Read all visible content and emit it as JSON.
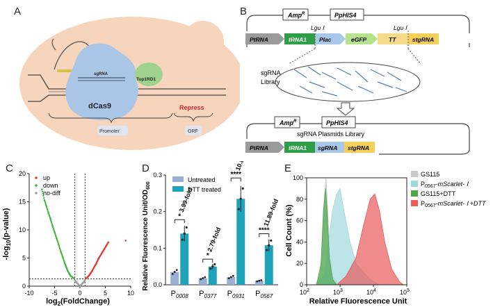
{
  "figure": {
    "panel_labels": [
      "A",
      "B",
      "C",
      "D",
      "E"
    ]
  },
  "panel_a": {
    "sgRNA_label": "sgRNA",
    "dcas9_label": "dCas9",
    "tup_label": "Tup1RD1",
    "repress_label": "Repress",
    "promoter_label": "Promoter",
    "orf_label": "ORF",
    "colors": {
      "cell": "#f7d4bc",
      "dcas9": "#a9c6e6",
      "tup": "#9fd28e",
      "repress": "#cc2a2a"
    }
  },
  "panel_b": {
    "top": {
      "amp": "Amp",
      "amp_sup": "R",
      "his": "PpHIS4",
      "lgu1": "Lgu Ⅰ",
      "lgu2": "Lgu Ⅰ",
      "parts": [
        "PtRNA",
        "tRNA1",
        "Plac",
        "eGFP",
        "TT",
        "stgRNA"
      ]
    },
    "library_label": "sgRNA\nLibrary",
    "bottom": {
      "amp": "Amp",
      "amp_sup": "R",
      "his": "PpHIS4",
      "title": "sgRNA Plasmids Library",
      "parts": [
        "PtRNA",
        "tRNA1",
        "sgRNA",
        "stgRNA"
      ]
    },
    "colors": {
      "ptrna": "#9b9b9b",
      "trna1": "#2e9e48",
      "plac": "#a9c7e8",
      "egfp": "#b7e38f",
      "tt": "#f4d986",
      "stgrna": "#f4cf5a",
      "sgrna": "#a9c7e8"
    }
  },
  "chart_data": [
    {
      "panel": "C",
      "type": "scatter",
      "xlabel": "log2(FoldChange)",
      "ylabel": "-log10(p-value)",
      "xlim": [
        -10,
        10
      ],
      "ylim": [
        0,
        20
      ],
      "xticks": [
        "-10",
        "-5",
        "0",
        "5",
        "10"
      ],
      "yticks": [
        "0",
        "5",
        "10",
        "15",
        "20"
      ],
      "legend": [
        "up",
        "down",
        "no-diff"
      ],
      "colors": {
        "up": "#e53935",
        "down": "#3fb63f",
        "no-diff": "#9e9e9e"
      },
      "thresholds": {
        "x": [
          -1,
          1
        ],
        "y": 1.3
      },
      "series": [
        {
          "name": "down",
          "points": [
            [
              -7.5,
              17.2
            ],
            [
              -7,
              15.3
            ],
            [
              -6.6,
              14.2
            ],
            [
              -6.2,
              13.0
            ],
            [
              -5.8,
              11.9
            ],
            [
              -5.4,
              10.7
            ],
            [
              -5.0,
              9.6
            ],
            [
              -4.6,
              8.5
            ],
            [
              -4.2,
              7.4
            ],
            [
              -3.8,
              6.2
            ],
            [
              -3.4,
              5.2
            ],
            [
              -3.0,
              4.1
            ],
            [
              -2.7,
              3.4
            ],
            [
              -2.4,
              2.7
            ],
            [
              -2.1,
              2.2
            ],
            [
              -1.8,
              1.8
            ],
            [
              -1.5,
              1.6
            ],
            [
              -1.2,
              1.4
            ]
          ]
        },
        {
          "name": "up",
          "points": [
            [
              1.2,
              1.4
            ],
            [
              1.5,
              1.6
            ],
            [
              1.8,
              1.9
            ],
            [
              2.1,
              2.3
            ],
            [
              2.4,
              2.7
            ],
            [
              2.8,
              3.4
            ],
            [
              3.2,
              4.0
            ],
            [
              3.6,
              4.8
            ],
            [
              4.0,
              5.4
            ],
            [
              4.4,
              6.0
            ],
            [
              4.8,
              6.6
            ],
            [
              5.2,
              7.2
            ],
            [
              5.6,
              7.8
            ],
            [
              9.0,
              8.1
            ]
          ]
        },
        {
          "name": "no-diff",
          "points": [
            [
              -1.0,
              1.0
            ],
            [
              -0.8,
              0.8
            ],
            [
              -0.5,
              0.5
            ],
            [
              -0.2,
              0.2
            ],
            [
              0,
              0.05
            ],
            [
              0.2,
              0.2
            ],
            [
              0.5,
              0.5
            ],
            [
              0.8,
              0.8
            ],
            [
              1.0,
              1.0
            ]
          ]
        }
      ]
    },
    {
      "panel": "D",
      "type": "bar",
      "ylabel": "Relative Fluorescence Unit/OD",
      "ylabel_sub": "600",
      "ylim": [
        0,
        0.3
      ],
      "yticks": [
        "0.0",
        "0.1",
        "0.2",
        "0.3"
      ],
      "categories": [
        "P",
        "P",
        "P",
        "P"
      ],
      "category_subs": [
        "0008",
        "0377",
        "0931",
        "0567"
      ],
      "series": [
        {
          "name": "Untreated",
          "values": [
            0.035,
            0.018,
            0.021,
            0.011
          ]
        },
        {
          "name": "DTT treated",
          "values": [
            0.14,
            0.05,
            0.235,
            0.108
          ]
        }
      ],
      "colors": {
        "Untreated": "#9aaed6",
        "DTT treated": "#1ea3b8"
      },
      "fold_labels": [
        "3.99-fold",
        "2.79-fold",
        "10.88-fold",
        "11.89-fold"
      ],
      "significance": [
        "*",
        "*",
        "****",
        "****"
      ]
    },
    {
      "panel": "E",
      "type": "area",
      "xlabel": "Relative Fluorescence Unit",
      "ylabel": "Cell Count (%)",
      "xscale": "log",
      "xlim": [
        100,
        100000
      ],
      "ylim": [
        0,
        100
      ],
      "xticks": [
        "10",
        "10",
        "10",
        "10"
      ],
      "xtick_exp": [
        "2",
        "3",
        "4",
        "5"
      ],
      "yticks": [
        "0",
        "20",
        "40",
        "60",
        "80",
        "100"
      ],
      "legend": [
        {
          "name": "GS115",
          "color": "#c9c9c9"
        },
        {
          "name": "P0567-mScarlet- Ⅰ",
          "prefix": "P",
          "sub": "0567",
          "suffix": "-mScarlet- Ⅰ",
          "color": "#9fd9df"
        },
        {
          "name": "GS115+DTT",
          "color": "#4aa84a"
        },
        {
          "name": "P0567-mScarlet- Ⅰ +DTT",
          "prefix": "P",
          "sub": "0567",
          "suffix": "-mScarlet- Ⅰ +DTT",
          "color": "#ea5a5a"
        }
      ],
      "series": [
        {
          "name": "GS115",
          "points": [
            [
              180,
              0
            ],
            [
              260,
              10
            ],
            [
              300,
              45
            ],
            [
              340,
              85
            ],
            [
              380,
              100
            ],
            [
              420,
              75
            ],
            [
              480,
              30
            ],
            [
              600,
              8
            ],
            [
              900,
              0
            ]
          ]
        },
        {
          "name": "P0567-mScarlet- Ⅰ",
          "points": [
            [
              200,
              0
            ],
            [
              350,
              10
            ],
            [
              450,
              40
            ],
            [
              600,
              70
            ],
            [
              800,
              85
            ],
            [
              1000,
              90
            ],
            [
              1300,
              70
            ],
            [
              2000,
              40
            ],
            [
              3000,
              20
            ],
            [
              5000,
              12
            ],
            [
              8000,
              5
            ],
            [
              15000,
              0
            ]
          ]
        },
        {
          "name": "GS115+DTT",
          "points": [
            [
              200,
              0
            ],
            [
              270,
              20
            ],
            [
              320,
              70
            ],
            [
              370,
              90
            ],
            [
              410,
              70
            ],
            [
              480,
              25
            ],
            [
              600,
              5
            ],
            [
              800,
              0
            ]
          ]
        },
        {
          "name": "P0567-mScarlet- Ⅰ +DTT",
          "points": [
            [
              800,
              0
            ],
            [
              1500,
              8
            ],
            [
              3000,
              25
            ],
            [
              5000,
              55
            ],
            [
              8000,
              80
            ],
            [
              11000,
              85
            ],
            [
              15000,
              70
            ],
            [
              22000,
              40
            ],
            [
              35000,
              15
            ],
            [
              60000,
              3
            ],
            [
              80000,
              0
            ]
          ]
        }
      ]
    }
  ]
}
